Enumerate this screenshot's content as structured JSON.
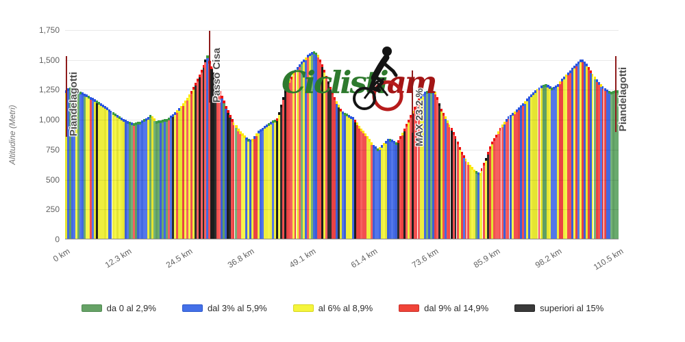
{
  "chart_data": {
    "type": "bar",
    "title": "",
    "xlabel": "",
    "ylabel": "Altitudine (Metri)",
    "grid": "horizontal",
    "legend_position": "bottom-center",
    "y_max_m": 1750,
    "x_max_km": 110.5,
    "y_ticks": [
      {
        "label": "0",
        "m": 0
      },
      {
        "label": "250",
        "m": 250
      },
      {
        "label": "500",
        "m": 500
      },
      {
        "label": "750",
        "m": 750
      },
      {
        "label": "1,000",
        "m": 1000
      },
      {
        "label": "1,250",
        "m": 1250
      },
      {
        "label": "1,500",
        "m": 1500
      },
      {
        "label": "1,750",
        "m": 1750
      }
    ],
    "x_ticks": [
      {
        "label": "0 km",
        "km": 0
      },
      {
        "label": "12.3 km",
        "km": 12.3
      },
      {
        "label": "24.5 km",
        "km": 24.5
      },
      {
        "label": "36.8 km",
        "km": 36.8
      },
      {
        "label": "49.1 km",
        "km": 49.1
      },
      {
        "label": "61.4 km",
        "km": 61.4
      },
      {
        "label": "73.6 km",
        "km": 73.6
      },
      {
        "label": "85.9 km",
        "km": 85.9
      },
      {
        "label": "98.2 km",
        "km": 98.2
      },
      {
        "label": "110.5 km",
        "km": 110.5
      }
    ],
    "profile": [
      [
        0,
        1240
      ],
      [
        0.7,
        1268
      ],
      [
        1.4,
        1275
      ],
      [
        2.7,
        1242
      ],
      [
        4.1,
        1215
      ],
      [
        5.5,
        1182
      ],
      [
        6.8,
        1150
      ],
      [
        8.2,
        1110
      ],
      [
        9.6,
        1062
      ],
      [
        10.9,
        1030
      ],
      [
        12.3,
        992
      ],
      [
        13.7,
        975
      ],
      [
        15,
        985
      ],
      [
        16.4,
        1020
      ],
      [
        17.1,
        1042
      ],
      [
        18.2,
        992
      ],
      [
        19.1,
        996
      ],
      [
        20.5,
        1012
      ],
      [
        21.8,
        1060
      ],
      [
        23.2,
        1120
      ],
      [
        24.6,
        1200
      ],
      [
        25.9,
        1300
      ],
      [
        27.3,
        1425
      ],
      [
        28.4,
        1545
      ],
      [
        29.4,
        1430
      ],
      [
        30.7,
        1262
      ],
      [
        32.1,
        1120
      ],
      [
        33.4,
        1000
      ],
      [
        34.8,
        915
      ],
      [
        36.2,
        852
      ],
      [
        37.3,
        830
      ],
      [
        38.6,
        905
      ],
      [
        40,
        950
      ],
      [
        41.4,
        990
      ],
      [
        42.3,
        1005
      ],
      [
        43,
        1095
      ],
      [
        43.7,
        1210
      ],
      [
        44.4,
        1300
      ],
      [
        45.7,
        1400
      ],
      [
        47.1,
        1480
      ],
      [
        48.5,
        1542
      ],
      [
        49.6,
        1575
      ],
      [
        50.5,
        1548
      ],
      [
        51.5,
        1450
      ],
      [
        52.6,
        1320
      ],
      [
        53.9,
        1180
      ],
      [
        55.3,
        1075
      ],
      [
        56.7,
        1040
      ],
      [
        57.7,
        1018
      ],
      [
        58.7,
        950
      ],
      [
        60.1,
        880
      ],
      [
        61.4,
        800
      ],
      [
        62.5,
        755
      ],
      [
        63.5,
        800
      ],
      [
        64.6,
        845
      ],
      [
        65.4,
        835
      ],
      [
        66.2,
        810
      ],
      [
        67.3,
        890
      ],
      [
        68.4,
        990
      ],
      [
        69.5,
        1085
      ],
      [
        70.6,
        1180
      ],
      [
        71.7,
        1232
      ],
      [
        72.8,
        1246
      ],
      [
        73.9,
        1235
      ],
      [
        75.1,
        1090
      ],
      [
        76.4,
        990
      ],
      [
        77.8,
        880
      ],
      [
        79.2,
        730
      ],
      [
        80.5,
        640
      ],
      [
        81.9,
        572
      ],
      [
        82.9,
        556
      ],
      [
        84,
        670
      ],
      [
        85.1,
        800
      ],
      [
        86.2,
        880
      ],
      [
        87.4,
        960
      ],
      [
        88.7,
        1032
      ],
      [
        90.1,
        1080
      ],
      [
        91.5,
        1140
      ],
      [
        92.8,
        1200
      ],
      [
        94.2,
        1255
      ],
      [
        95.3,
        1290
      ],
      [
        96.2,
        1300
      ],
      [
        97.3,
        1265
      ],
      [
        98.3,
        1292
      ],
      [
        99.4,
        1350
      ],
      [
        100.6,
        1400
      ],
      [
        101.7,
        1455
      ],
      [
        103.1,
        1510
      ],
      [
        104.2,
        1470
      ],
      [
        105.3,
        1390
      ],
      [
        106.5,
        1320
      ],
      [
        107.7,
        1270
      ],
      [
        108.8,
        1235
      ],
      [
        109.9,
        1245
      ],
      [
        110.5,
        1250
      ]
    ],
    "markers": [
      {
        "label": "Piandelagotti",
        "km": 0.3,
        "line_top_m": 1535,
        "line_bottom_m": 860,
        "label_bottom_m": 860
      },
      {
        "label": "Passo Cisa",
        "km": 28.9,
        "line_top_m": 1745,
        "line_bottom_m": 1145,
        "label_bottom_m": 1145
      },
      {
        "label": "MAX 23:2 %",
        "km": 69.4,
        "line_top_m": 1415,
        "line_bottom_m": 890,
        "label_bottom_m": 775
      },
      {
        "label": "Piandelagotti",
        "km": 110.0,
        "line_top_m": 1535,
        "line_bottom_m": 900,
        "label_bottom_m": 900
      }
    ],
    "gradient_legend": [
      {
        "label": "da 0 al 2,9%",
        "color": "#66a266",
        "border": "#4e8a50",
        "key": "green"
      },
      {
        "label": "dal 3% al 5,9%",
        "color": "#4470e8",
        "border": "#2c58cc",
        "key": "blue"
      },
      {
        "label": "al 6% al 8,9%",
        "color": "#f5f53c",
        "border": "#d6d61e",
        "key": "yellow"
      },
      {
        "label": "dal 9% al 14,9%",
        "color": "#f04438",
        "border": "#c9302a",
        "key": "red"
      },
      {
        "label": "superiori al 15%",
        "color": "#3a3a3a",
        "border": "#222222",
        "key": "black"
      }
    ],
    "palette": {
      "bar": {
        "green": [
          "#6aaa6e",
          "#5f9f63",
          "#74b178"
        ],
        "blue": [
          "#4269e2",
          "#3c5fd6",
          "#5377ea"
        ],
        "yellow": [
          "#eeee3e",
          "#e5e532",
          "#f5f54a"
        ],
        "red": [
          "#f25050",
          "#ea4343",
          "#f66060"
        ],
        "black": [
          "#2e2e2e",
          "#1d1d1d"
        ]
      },
      "cap": {
        "green": "#3a9a44",
        "blue": "#2a55e0",
        "yellow": "#ffe70a",
        "red": "#ee1111",
        "black": "#101010"
      },
      "marker_line": "#8e1b1b"
    },
    "watermark": {
      "green_text": "Ciclisti",
      "red_text": "am",
      "icon": "cyclist-on-bike"
    }
  }
}
